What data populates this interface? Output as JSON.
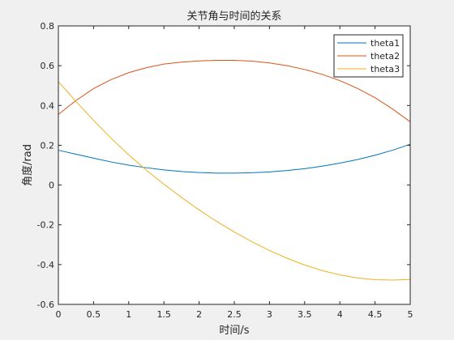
{
  "chart_data": {
    "type": "line",
    "title": "关节角与时间的关系",
    "xlabel": "时间/s",
    "ylabel": "角度/rad",
    "xlim": [
      0,
      5
    ],
    "ylim": [
      -0.6,
      0.8
    ],
    "xticks": [
      0,
      0.5,
      1,
      1.5,
      2,
      2.5,
      3,
      3.5,
      4,
      4.5,
      5
    ],
    "xtick_labels": [
      "0",
      "0.5",
      "1",
      "1.5",
      "2",
      "2.5",
      "3",
      "3.5",
      "4",
      "4.5",
      "5"
    ],
    "yticks": [
      -0.6,
      -0.4,
      -0.2,
      0,
      0.2,
      0.4,
      0.6,
      0.8
    ],
    "ytick_labels": [
      "-0.6",
      "-0.4",
      "-0.2",
      "0",
      "0.2",
      "0.4",
      "0.6",
      "0.8"
    ],
    "grid": false,
    "legend_position": "top-right",
    "x": [
      0,
      0.25,
      0.5,
      0.75,
      1,
      1.25,
      1.5,
      1.75,
      2,
      2.25,
      2.5,
      2.75,
      3,
      3.25,
      3.5,
      3.75,
      4,
      4.25,
      4.5,
      4.75,
      5
    ],
    "series": [
      {
        "name": "theta1",
        "color": "#0072bd",
        "values": [
          0.175,
          0.155,
          0.135,
          0.116,
          0.1,
          0.087,
          0.076,
          0.068,
          0.063,
          0.06,
          0.06,
          0.062,
          0.066,
          0.073,
          0.082,
          0.095,
          0.11,
          0.128,
          0.15,
          0.175,
          0.205
        ]
      },
      {
        "name": "theta2",
        "color": "#d95319",
        "values": [
          0.355,
          0.425,
          0.485,
          0.53,
          0.565,
          0.59,
          0.608,
          0.618,
          0.624,
          0.627,
          0.627,
          0.623,
          0.614,
          0.6,
          0.581,
          0.556,
          0.525,
          0.486,
          0.439,
          0.382,
          0.318
        ]
      },
      {
        "name": "theta3",
        "color": "#edb120",
        "values": [
          0.52,
          0.42,
          0.325,
          0.235,
          0.152,
          0.075,
          0.004,
          -0.062,
          -0.125,
          -0.183,
          -0.236,
          -0.285,
          -0.329,
          -0.368,
          -0.402,
          -0.43,
          -0.452,
          -0.467,
          -0.476,
          -0.478,
          -0.475
        ]
      }
    ]
  }
}
